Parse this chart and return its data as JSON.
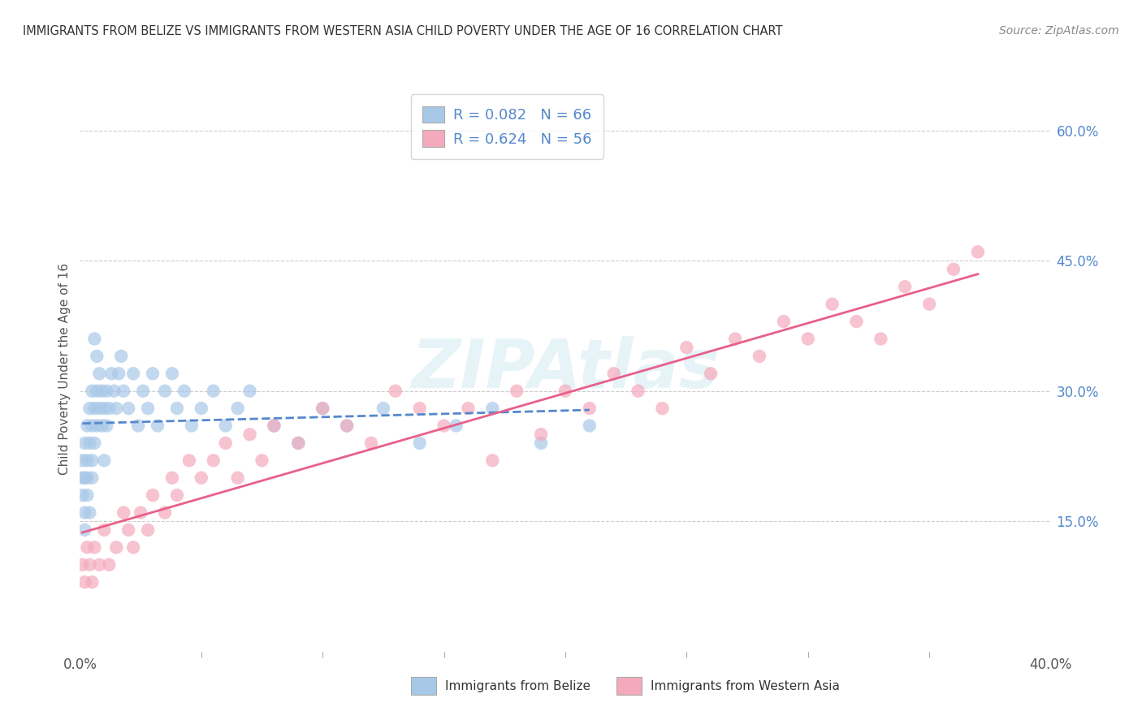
{
  "title": "IMMIGRANTS FROM BELIZE VS IMMIGRANTS FROM WESTERN ASIA CHILD POVERTY UNDER THE AGE OF 16 CORRELATION CHART",
  "source": "Source: ZipAtlas.com",
  "ylabel": "Child Poverty Under the Age of 16",
  "ytick_values": [
    0.15,
    0.3,
    0.45,
    0.6
  ],
  "xlim": [
    0.0,
    0.4
  ],
  "ylim": [
    0.0,
    0.65
  ],
  "belize_color": "#a8c8e8",
  "belize_line_color": "#5588cc",
  "western_asia_color": "#f4aabc",
  "western_asia_line_color": "#e8608a",
  "belize_R": 0.082,
  "belize_N": 66,
  "western_asia_R": 0.624,
  "western_asia_N": 56,
  "legend_label_belize": "Immigrants from Belize",
  "legend_label_western_asia": "Immigrants from Western Asia",
  "watermark": "ZIPAtlas",
  "tick_color": "#5588cc",
  "background_color": "#ffffff",
  "belize_x": [
    0.001,
    0.001,
    0.001,
    0.002,
    0.002,
    0.002,
    0.002,
    0.003,
    0.003,
    0.003,
    0.003,
    0.004,
    0.004,
    0.004,
    0.005,
    0.005,
    0.005,
    0.005,
    0.006,
    0.006,
    0.006,
    0.007,
    0.007,
    0.007,
    0.008,
    0.008,
    0.009,
    0.009,
    0.01,
    0.01,
    0.011,
    0.011,
    0.012,
    0.013,
    0.014,
    0.015,
    0.016,
    0.017,
    0.018,
    0.02,
    0.022,
    0.024,
    0.026,
    0.028,
    0.03,
    0.032,
    0.035,
    0.038,
    0.04,
    0.043,
    0.046,
    0.05,
    0.055,
    0.06,
    0.065,
    0.07,
    0.08,
    0.09,
    0.1,
    0.11,
    0.125,
    0.14,
    0.155,
    0.17,
    0.19,
    0.21
  ],
  "belize_y": [
    0.2,
    0.22,
    0.18,
    0.24,
    0.2,
    0.16,
    0.14,
    0.22,
    0.26,
    0.18,
    0.2,
    0.24,
    0.28,
    0.16,
    0.22,
    0.26,
    0.2,
    0.3,
    0.24,
    0.28,
    0.36,
    0.3,
    0.26,
    0.34,
    0.28,
    0.32,
    0.26,
    0.3,
    0.22,
    0.28,
    0.26,
    0.3,
    0.28,
    0.32,
    0.3,
    0.28,
    0.32,
    0.34,
    0.3,
    0.28,
    0.32,
    0.26,
    0.3,
    0.28,
    0.32,
    0.26,
    0.3,
    0.32,
    0.28,
    0.3,
    0.26,
    0.28,
    0.3,
    0.26,
    0.28,
    0.3,
    0.26,
    0.24,
    0.28,
    0.26,
    0.28,
    0.24,
    0.26,
    0.28,
    0.24,
    0.26
  ],
  "western_asia_x": [
    0.001,
    0.002,
    0.003,
    0.004,
    0.005,
    0.006,
    0.008,
    0.01,
    0.012,
    0.015,
    0.018,
    0.02,
    0.022,
    0.025,
    0.028,
    0.03,
    0.035,
    0.038,
    0.04,
    0.045,
    0.05,
    0.055,
    0.06,
    0.065,
    0.07,
    0.075,
    0.08,
    0.09,
    0.1,
    0.11,
    0.12,
    0.13,
    0.14,
    0.15,
    0.16,
    0.17,
    0.18,
    0.19,
    0.2,
    0.21,
    0.22,
    0.23,
    0.24,
    0.25,
    0.26,
    0.27,
    0.28,
    0.29,
    0.3,
    0.31,
    0.32,
    0.33,
    0.34,
    0.35,
    0.36,
    0.37
  ],
  "western_asia_y": [
    0.1,
    0.08,
    0.12,
    0.1,
    0.08,
    0.12,
    0.1,
    0.14,
    0.1,
    0.12,
    0.16,
    0.14,
    0.12,
    0.16,
    0.14,
    0.18,
    0.16,
    0.2,
    0.18,
    0.22,
    0.2,
    0.22,
    0.24,
    0.2,
    0.25,
    0.22,
    0.26,
    0.24,
    0.28,
    0.26,
    0.24,
    0.3,
    0.28,
    0.26,
    0.28,
    0.22,
    0.3,
    0.25,
    0.3,
    0.28,
    0.32,
    0.3,
    0.28,
    0.35,
    0.32,
    0.36,
    0.34,
    0.38,
    0.36,
    0.4,
    0.38,
    0.36,
    0.42,
    0.4,
    0.44,
    0.46
  ]
}
